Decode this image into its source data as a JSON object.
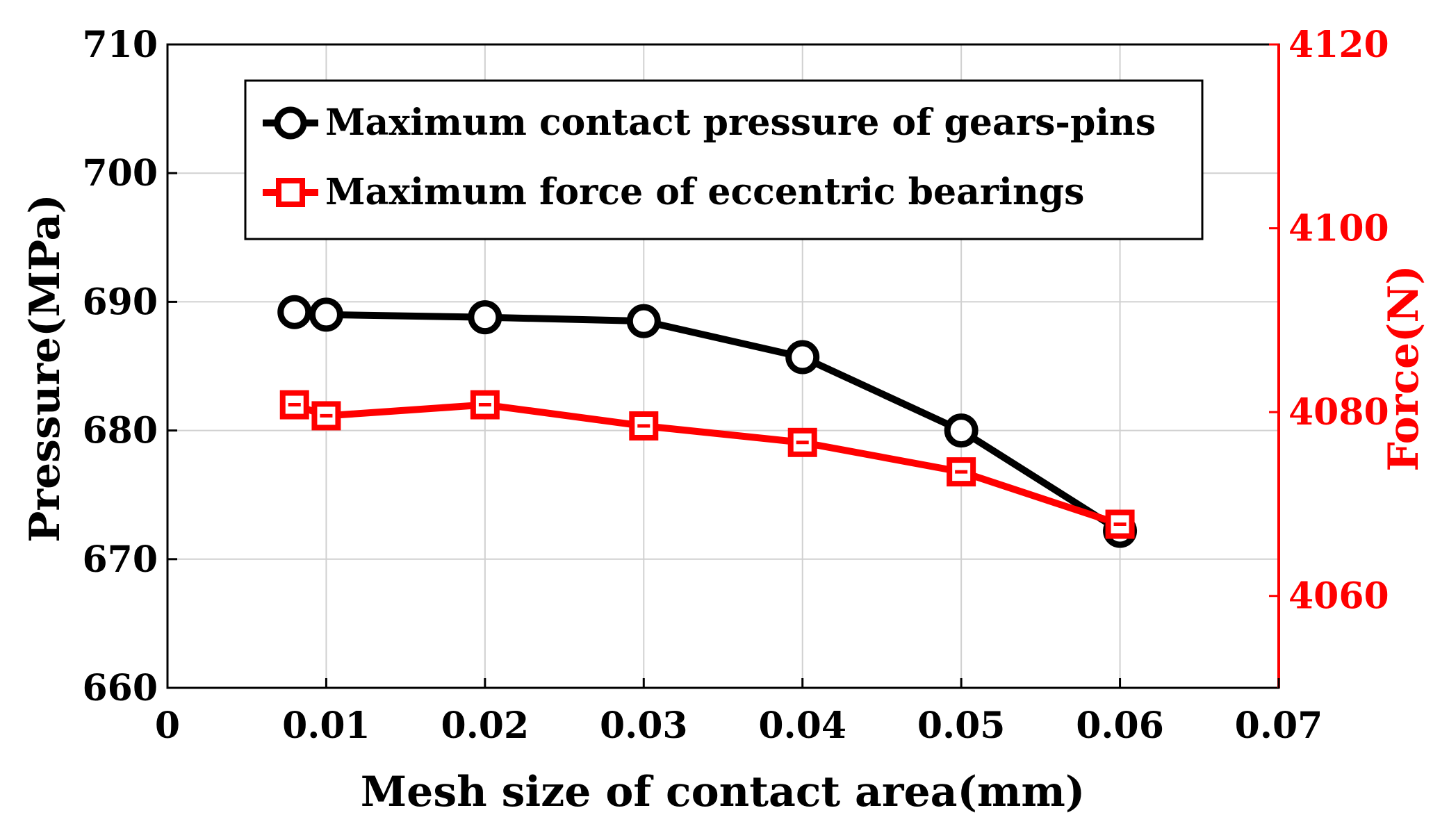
{
  "colors": {
    "pressure": "#000000",
    "force": "#ff0000",
    "grid": "#d0d0d0",
    "axis": "#000000"
  },
  "chart_data": {
    "type": "line",
    "title": "",
    "xlabel": "Mesh size of contact area(mm)",
    "ylabel_left": "Pressure(MPa)",
    "ylabel_right": "Force(N)",
    "xlim": [
      0,
      0.07
    ],
    "ylim_left": [
      660,
      710
    ],
    "ylim_right": [
      4050,
      4120
    ],
    "x_ticks": [
      0,
      0.01,
      0.02,
      0.03,
      0.04,
      0.05,
      0.06,
      0.07
    ],
    "x_tick_labels": [
      "0",
      "0.01",
      "0.02",
      "0.03",
      "0.04",
      "0.05",
      "0.06",
      "0.07"
    ],
    "y_left_ticks": [
      660,
      670,
      680,
      690,
      700,
      710
    ],
    "y_left_tick_labels": [
      "660",
      "670",
      "680",
      "690",
      "700",
      "710"
    ],
    "y_right_ticks": [
      4060,
      4080,
      4100,
      4120
    ],
    "y_right_tick_labels": [
      "4060",
      "4080",
      "4100",
      "4120"
    ],
    "grid": true,
    "legend_position": "top-center",
    "series": [
      {
        "name": "Maximum contact pressure of gears-pins",
        "axis": "left",
        "marker": "circle",
        "color": "#000000",
        "x": [
          0.008,
          0.01,
          0.02,
          0.03,
          0.04,
          0.05,
          0.06
        ],
        "values": [
          689.2,
          689.0,
          688.8,
          688.5,
          685.7,
          680.0,
          672.2
        ]
      },
      {
        "name": "Maximum force of eccentric bearings",
        "axis": "right",
        "marker": "square",
        "color": "#ff0000",
        "x": [
          0.008,
          0.01,
          0.02,
          0.03,
          0.04,
          0.05,
          0.06
        ],
        "values": [
          4080.8,
          4079.6,
          4080.8,
          4078.5,
          4076.7,
          4073.5,
          4067.8
        ]
      }
    ]
  }
}
